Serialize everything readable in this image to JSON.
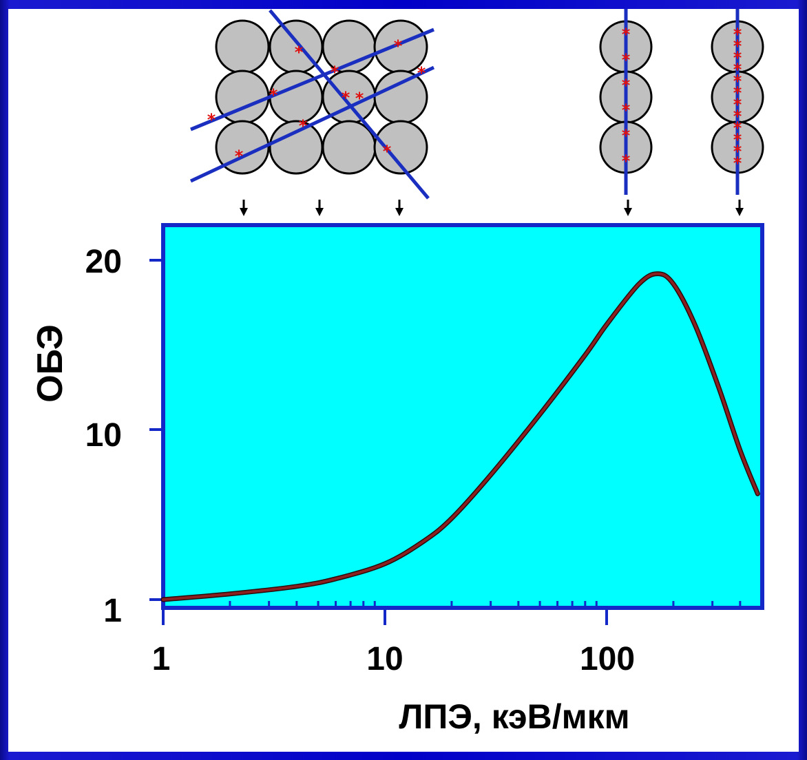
{
  "chart_data": {
    "type": "line",
    "xlabel": "ЛПЭ, кэВ/мкм",
    "ylabel": "ОБЭ",
    "x_scale": "log",
    "xlim": [
      1,
      500
    ],
    "x_ticks": [
      "1",
      "10",
      "100"
    ],
    "y_ticks": [
      "1",
      "10",
      "20"
    ],
    "series": [
      {
        "color": "#8b2020",
        "x": [
          1,
          2,
          4,
          6,
          10,
          15,
          20,
          30,
          50,
          80,
          100,
          140,
          170,
          200,
          250,
          320,
          400,
          480
        ],
        "y": [
          1,
          1.3,
          1.7,
          2.1,
          2.9,
          4.1,
          5.3,
          7.6,
          10.9,
          14.4,
          16.2,
          18.6,
          19.2,
          18.6,
          16.2,
          12.5,
          8.9,
          6.6
        ]
      }
    ],
    "plot_background": "#00ffff",
    "frame_color": "#1428c8"
  },
  "illustration": {
    "track_color": "#1a2fc0",
    "event_color": "#e01010",
    "cell_color": "#c0c0c0"
  }
}
